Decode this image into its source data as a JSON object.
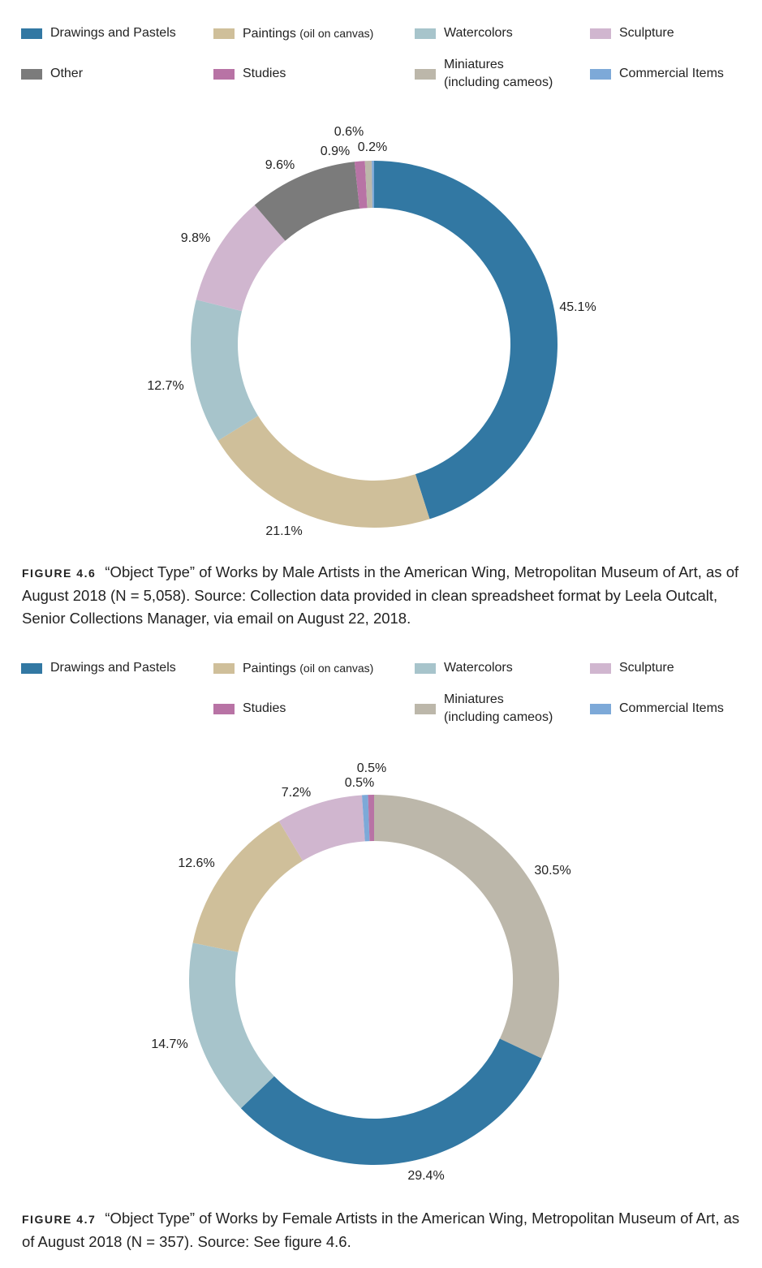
{
  "colors": {
    "drawings": "#3278a3",
    "paintings": "#cfbf9a",
    "watercolors": "#a7c4cb",
    "sculpture": "#d0b6cf",
    "other": "#7b7b7b",
    "studies": "#b873a5",
    "miniatures": "#bcb7aa",
    "commercial": "#7da9d8"
  },
  "legend1": [
    {
      "label": "Drawings and Pastels",
      "note": "",
      "key": "drawings"
    },
    {
      "label": "Paintings ",
      "note": "(oil on canvas)",
      "key": "paintings"
    },
    {
      "label": "Watercolors",
      "note": "",
      "key": "watercolors"
    },
    {
      "label": "Sculpture",
      "note": "",
      "key": "sculpture"
    },
    {
      "label": "Other",
      "note": "",
      "key": "other"
    },
    {
      "label": "Studies",
      "note": "",
      "key": "studies"
    },
    {
      "label": "Miniatures\n(including cameos)",
      "note": "",
      "key": "miniatures"
    },
    {
      "label": "Commercial Items",
      "note": "",
      "key": "commercial"
    }
  ],
  "legend2": [
    {
      "label": "Drawings and Pastels",
      "note": "",
      "key": "drawings"
    },
    {
      "label": "Paintings ",
      "note": "(oil on canvas)",
      "key": "paintings"
    },
    {
      "label": "Watercolors",
      "note": "",
      "key": "watercolors"
    },
    {
      "label": "Sculpture",
      "note": "",
      "key": "sculpture"
    },
    null,
    {
      "label": "Studies",
      "note": "",
      "key": "studies"
    },
    {
      "label": "Miniatures\n(including cameos)",
      "note": "",
      "key": "miniatures"
    },
    {
      "label": "Commercial Items",
      "note": "",
      "key": "commercial"
    }
  ],
  "chart_data": [
    {
      "type": "pie",
      "subtype": "donut",
      "series": [
        {
          "name": "Drawings and Pastels",
          "value": 45.1,
          "label": "45.1%",
          "color": "#3278a3"
        },
        {
          "name": "Paintings (oil on canvas)",
          "value": 21.1,
          "label": "21.1%",
          "color": "#cfbf9a"
        },
        {
          "name": "Watercolors",
          "value": 12.7,
          "label": "12.7%",
          "color": "#a7c4cb"
        },
        {
          "name": "Sculpture",
          "value": 9.8,
          "label": "9.8%",
          "color": "#d0b6cf"
        },
        {
          "name": "Other",
          "value": 9.6,
          "label": "9.6%",
          "color": "#7b7b7b"
        },
        {
          "name": "Studies",
          "value": 0.9,
          "label": "0.9%",
          "color": "#b873a5"
        },
        {
          "name": "Miniatures (including cameos)",
          "value": 0.6,
          "label": "0.6%",
          "color": "#bcb7aa"
        },
        {
          "name": "Commercial Items",
          "value": 0.2,
          "label": "0.2%",
          "color": "#7da9d8"
        }
      ],
      "legend_position": "top"
    },
    {
      "type": "pie",
      "subtype": "donut",
      "series": [
        {
          "name": "Miniatures (including cameos)",
          "value": 30.5,
          "label": "30.5%",
          "color": "#bcb7aa"
        },
        {
          "name": "Drawings and Pastels",
          "value": 29.4,
          "label": "29.4%",
          "color": "#3278a3"
        },
        {
          "name": "Watercolors",
          "value": 14.7,
          "label": "14.7%",
          "color": "#a7c4cb"
        },
        {
          "name": "Paintings (oil on canvas)",
          "value": 12.6,
          "label": "12.6%",
          "color": "#cfbf9a"
        },
        {
          "name": "Sculpture",
          "value": 7.2,
          "label": "7.2%",
          "color": "#d0b6cf"
        },
        {
          "name": "Commercial Items",
          "value": 0.5,
          "label": "0.5%",
          "color": "#7da9d8"
        },
        {
          "name": "Studies",
          "value": 0.5,
          "label": "0.5%",
          "color": "#b873a5"
        }
      ],
      "legend_position": "top"
    }
  ],
  "captions": [
    {
      "fig": "FIGURE 4.6",
      "text": "“Object Type” of Works by Male Artists in the American Wing, Metropolitan Museum of Art, as of August 2018 (N = 5,058). Source: Collection data provided in clean spreadsheet format by Leela Outcalt, Senior Collections Manager, via email on August 22, 2018."
    },
    {
      "fig": "FIGURE 4.7",
      "text": "“Object Type” of Works by Female Artists in the American Wing, Metropolitan Museum of Art, as of August 2018 (N = 357). Source: See figure 4.6."
    }
  ]
}
